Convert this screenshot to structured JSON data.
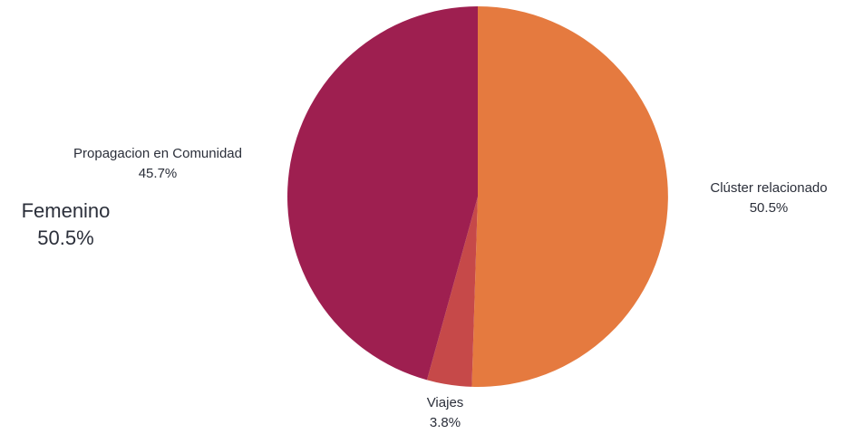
{
  "side_label": {
    "title": "Femenino",
    "value": "50.5%"
  },
  "chart_data": {
    "type": "pie",
    "title": "",
    "slices": [
      {
        "label": "Clúster relacionado",
        "value": 50.5,
        "display": "50.5%",
        "color": "#E57A3F"
      },
      {
        "label": "Viajes",
        "value": 3.8,
        "display": "3.8%",
        "color": "#C64949"
      },
      {
        "label": "Propagacion en Comunidad",
        "value": 45.7,
        "display": "45.7%",
        "color": "#9E1F50"
      }
    ],
    "start": "top",
    "direction": "clockwise",
    "legend": "none"
  }
}
